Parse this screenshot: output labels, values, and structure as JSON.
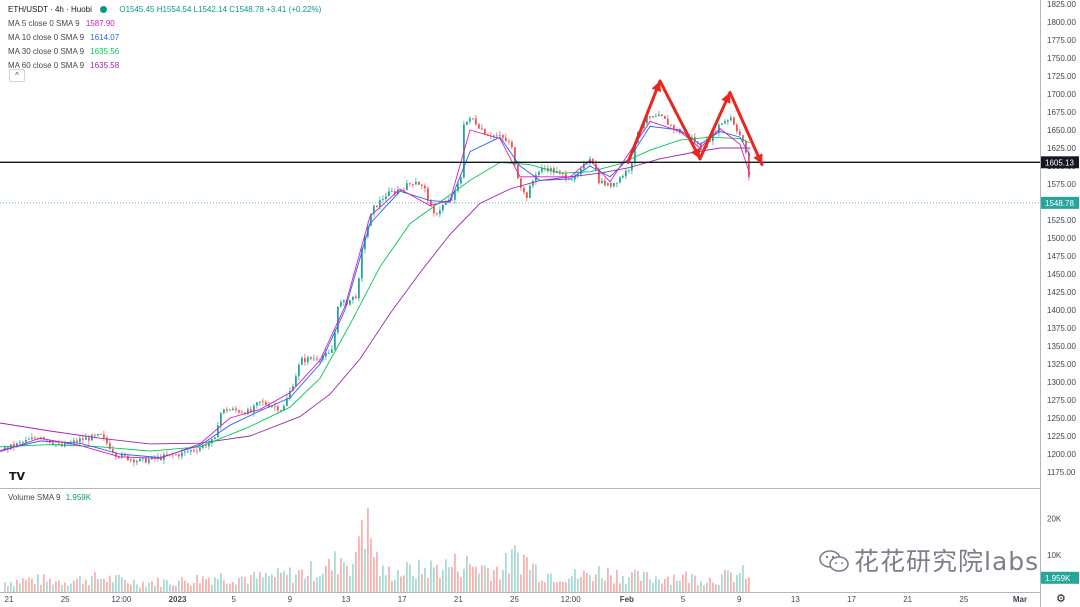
{
  "header": {
    "symbol": "ETH/USDT · 4h · Huobi",
    "ohlc": "O1545.45 H1554.54 L1542.14 C1548.78 +3.41 (+0.22%)",
    "indicators": [
      {
        "label": "MA 5 close 0 SMA 9",
        "value": "1587.90",
        "color": "#d81bb6"
      },
      {
        "label": "MA 10 close 0 SMA 9",
        "value": "1614.07",
        "color": "#2962ff"
      },
      {
        "label": "MA 30 close 0 SMA 9",
        "value": "1635.56",
        "color": "#00c853"
      },
      {
        "label": "MA 60 close 0 SMA 9",
        "value": "1635.58",
        "color": "#9c27b0"
      }
    ],
    "collapse_glyph": "^"
  },
  "volume_legend": {
    "label": "Volume SMA 9",
    "value": "1.959K"
  },
  "branding": {
    "logo": "TV",
    "watermark": "花花研究院labs",
    "settings_glyph": "⚙"
  },
  "chart_data": {
    "type": "candlestick",
    "price_axis": {
      "ylim": [
        1150,
        1825
      ],
      "ticks": [
        "1825.00",
        "1800.00",
        "1775.00",
        "1750.00",
        "1725.00",
        "1700.00",
        "1675.00",
        "1650.00",
        "1625.00",
        "1600.00",
        "1575.00",
        "1550.00",
        "1525.00",
        "1500.00",
        "1475.00",
        "1450.00",
        "1425.00",
        "1400.00",
        "1375.00",
        "1350.00",
        "1325.00",
        "1300.00",
        "1275.00",
        "1250.00",
        "1225.00",
        "1200.00",
        "1175.00"
      ]
    },
    "volume_axis": {
      "ticks": [
        "20K",
        "10K"
      ],
      "ylim": [
        0,
        28000
      ]
    },
    "time_axis": [
      "21",
      "25",
      "12:00",
      "2023",
      "5",
      "9",
      "13",
      "17",
      "21",
      "25",
      "12:00",
      "Feb",
      "5",
      "9",
      "13",
      "17",
      "21",
      "25",
      "Mar"
    ],
    "horizontal_line": {
      "value": 1605.13,
      "label": "1605.13"
    },
    "last_price": {
      "value": 1548.78,
      "label": "1548.78"
    },
    "volume_last": {
      "label": "1.959K"
    },
    "price_path": [
      [
        0,
        1205
      ],
      [
        20,
        1215
      ],
      [
        40,
        1225
      ],
      [
        60,
        1210
      ],
      [
        80,
        1220
      ],
      [
        100,
        1225
      ],
      [
        115,
        1200
      ],
      [
        125,
        1195
      ],
      [
        140,
        1190
      ],
      [
        160,
        1195
      ],
      [
        180,
        1200
      ],
      [
        200,
        1210
      ],
      [
        215,
        1220
      ],
      [
        218,
        1255
      ],
      [
        225,
        1262
      ],
      [
        250,
        1258
      ],
      [
        258,
        1272
      ],
      [
        270,
        1268
      ],
      [
        282,
        1262
      ],
      [
        290,
        1290
      ],
      [
        300,
        1330
      ],
      [
        320,
        1335
      ],
      [
        328,
        1338
      ],
      [
        333,
        1350
      ],
      [
        336,
        1408
      ],
      [
        345,
        1410
      ],
      [
        355,
        1420
      ],
      [
        358,
        1440
      ],
      [
        362,
        1495
      ],
      [
        372,
        1540
      ],
      [
        385,
        1560
      ],
      [
        400,
        1568
      ],
      [
        415,
        1580
      ],
      [
        425,
        1565
      ],
      [
        432,
        1530
      ],
      [
        442,
        1545
      ],
      [
        452,
        1555
      ],
      [
        460,
        1585
      ],
      [
        462,
        1660
      ],
      [
        472,
        1665
      ],
      [
        485,
        1645
      ],
      [
        500,
        1640
      ],
      [
        510,
        1630
      ],
      [
        518,
        1580
      ],
      [
        525,
        1555
      ],
      [
        535,
        1590
      ],
      [
        545,
        1598
      ],
      [
        560,
        1588
      ],
      [
        575,
        1582
      ],
      [
        590,
        1615
      ],
      [
        598,
        1580
      ],
      [
        608,
        1572
      ],
      [
        620,
        1585
      ],
      [
        630,
        1600
      ],
      [
        637,
        1650
      ],
      [
        645,
        1665
      ],
      [
        660,
        1668
      ],
      [
        675,
        1650
      ],
      [
        690,
        1640
      ],
      [
        700,
        1625
      ],
      [
        710,
        1640
      ],
      [
        720,
        1660
      ],
      [
        730,
        1668
      ],
      [
        740,
        1640
      ],
      [
        746,
        1615
      ],
      [
        750,
        1548.78
      ]
    ],
    "moving_averages": [
      {
        "name": "MA 60",
        "color": "#9c27b0",
        "points": [
          [
            0,
            1243
          ],
          [
            50,
            1232
          ],
          [
            100,
            1222
          ],
          [
            150,
            1214
          ],
          [
            200,
            1215
          ],
          [
            250,
            1225
          ],
          [
            300,
            1252
          ],
          [
            330,
            1283
          ],
          [
            360,
            1332
          ],
          [
            390,
            1395
          ],
          [
            420,
            1452
          ],
          [
            450,
            1505
          ],
          [
            480,
            1548
          ],
          [
            510,
            1568
          ],
          [
            540,
            1580
          ],
          [
            570,
            1585
          ],
          [
            600,
            1590
          ],
          [
            630,
            1598
          ],
          [
            660,
            1610
          ],
          [
            690,
            1618
          ],
          [
            720,
            1625
          ],
          [
            750,
            1625
          ]
        ]
      },
      {
        "name": "MA 30",
        "color": "#00c853",
        "points": [
          [
            0,
            1210
          ],
          [
            50,
            1213
          ],
          [
            100,
            1210
          ],
          [
            150,
            1204
          ],
          [
            200,
            1210
          ],
          [
            250,
            1238
          ],
          [
            290,
            1265
          ],
          [
            320,
            1305
          ],
          [
            350,
            1380
          ],
          [
            380,
            1460
          ],
          [
            410,
            1520
          ],
          [
            440,
            1550
          ],
          [
            470,
            1580
          ],
          [
            500,
            1605
          ],
          [
            530,
            1602
          ],
          [
            560,
            1590
          ],
          [
            590,
            1592
          ],
          [
            620,
            1603
          ],
          [
            650,
            1622
          ],
          [
            680,
            1636
          ],
          [
            710,
            1640
          ],
          [
            740,
            1638
          ],
          [
            750,
            1632
          ]
        ]
      },
      {
        "name": "MA 10",
        "color": "#2962ff",
        "points": [
          [
            0,
            1205
          ],
          [
            40,
            1218
          ],
          [
            80,
            1215
          ],
          [
            120,
            1200
          ],
          [
            160,
            1195
          ],
          [
            200,
            1212
          ],
          [
            230,
            1240
          ],
          [
            260,
            1260
          ],
          [
            290,
            1278
          ],
          [
            320,
            1325
          ],
          [
            345,
            1400
          ],
          [
            370,
            1520
          ],
          [
            400,
            1565
          ],
          [
            430,
            1552
          ],
          [
            450,
            1550
          ],
          [
            470,
            1620
          ],
          [
            500,
            1640
          ],
          [
            520,
            1600
          ],
          [
            540,
            1580
          ],
          [
            570,
            1582
          ],
          [
            590,
            1600
          ],
          [
            610,
            1585
          ],
          [
            630,
            1612
          ],
          [
            650,
            1655
          ],
          [
            680,
            1650
          ],
          [
            700,
            1630
          ],
          [
            720,
            1648
          ],
          [
            740,
            1640
          ],
          [
            750,
            1614
          ]
        ]
      },
      {
        "name": "MA 5",
        "color": "#d81bb6",
        "points": [
          [
            0,
            1203
          ],
          [
            40,
            1222
          ],
          [
            80,
            1212
          ],
          [
            120,
            1196
          ],
          [
            160,
            1194
          ],
          [
            200,
            1214
          ],
          [
            230,
            1250
          ],
          [
            260,
            1262
          ],
          [
            290,
            1285
          ],
          [
            320,
            1330
          ],
          [
            345,
            1405
          ],
          [
            370,
            1530
          ],
          [
            400,
            1568
          ],
          [
            430,
            1545
          ],
          [
            450,
            1552
          ],
          [
            470,
            1650
          ],
          [
            500,
            1638
          ],
          [
            520,
            1585
          ],
          [
            540,
            1585
          ],
          [
            570,
            1585
          ],
          [
            590,
            1608
          ],
          [
            610,
            1578
          ],
          [
            630,
            1620
          ],
          [
            650,
            1662
          ],
          [
            680,
            1648
          ],
          [
            700,
            1625
          ],
          [
            720,
            1652
          ],
          [
            740,
            1630
          ],
          [
            750,
            1588
          ]
        ]
      }
    ],
    "pattern_arrows": {
      "color": "#e8261f",
      "points": [
        [
          628,
          1605
        ],
        [
          660,
          1718
        ],
        [
          700,
          1610
        ],
        [
          730,
          1702
        ],
        [
          762,
          1602
        ]
      ]
    },
    "volume_profile": [
      [
        0,
        3000
      ],
      [
        30,
        4000
      ],
      [
        60,
        3500
      ],
      [
        100,
        4500
      ],
      [
        140,
        3000
      ],
      [
        180,
        3500
      ],
      [
        215,
        5000
      ],
      [
        260,
        4500
      ],
      [
        300,
        6000
      ],
      [
        330,
        8000
      ],
      [
        340,
        11000
      ],
      [
        355,
        9000
      ],
      [
        360,
        27000
      ],
      [
        380,
        6000
      ],
      [
        420,
        7000
      ],
      [
        460,
        9000
      ],
      [
        500,
        7000
      ],
      [
        518,
        12000
      ],
      [
        540,
        6000
      ],
      [
        580,
        5000
      ],
      [
        600,
        6500
      ],
      [
        640,
        4500
      ],
      [
        680,
        5000
      ],
      [
        710,
        4000
      ],
      [
        746,
        6000
      ],
      [
        750,
        1959
      ]
    ]
  }
}
